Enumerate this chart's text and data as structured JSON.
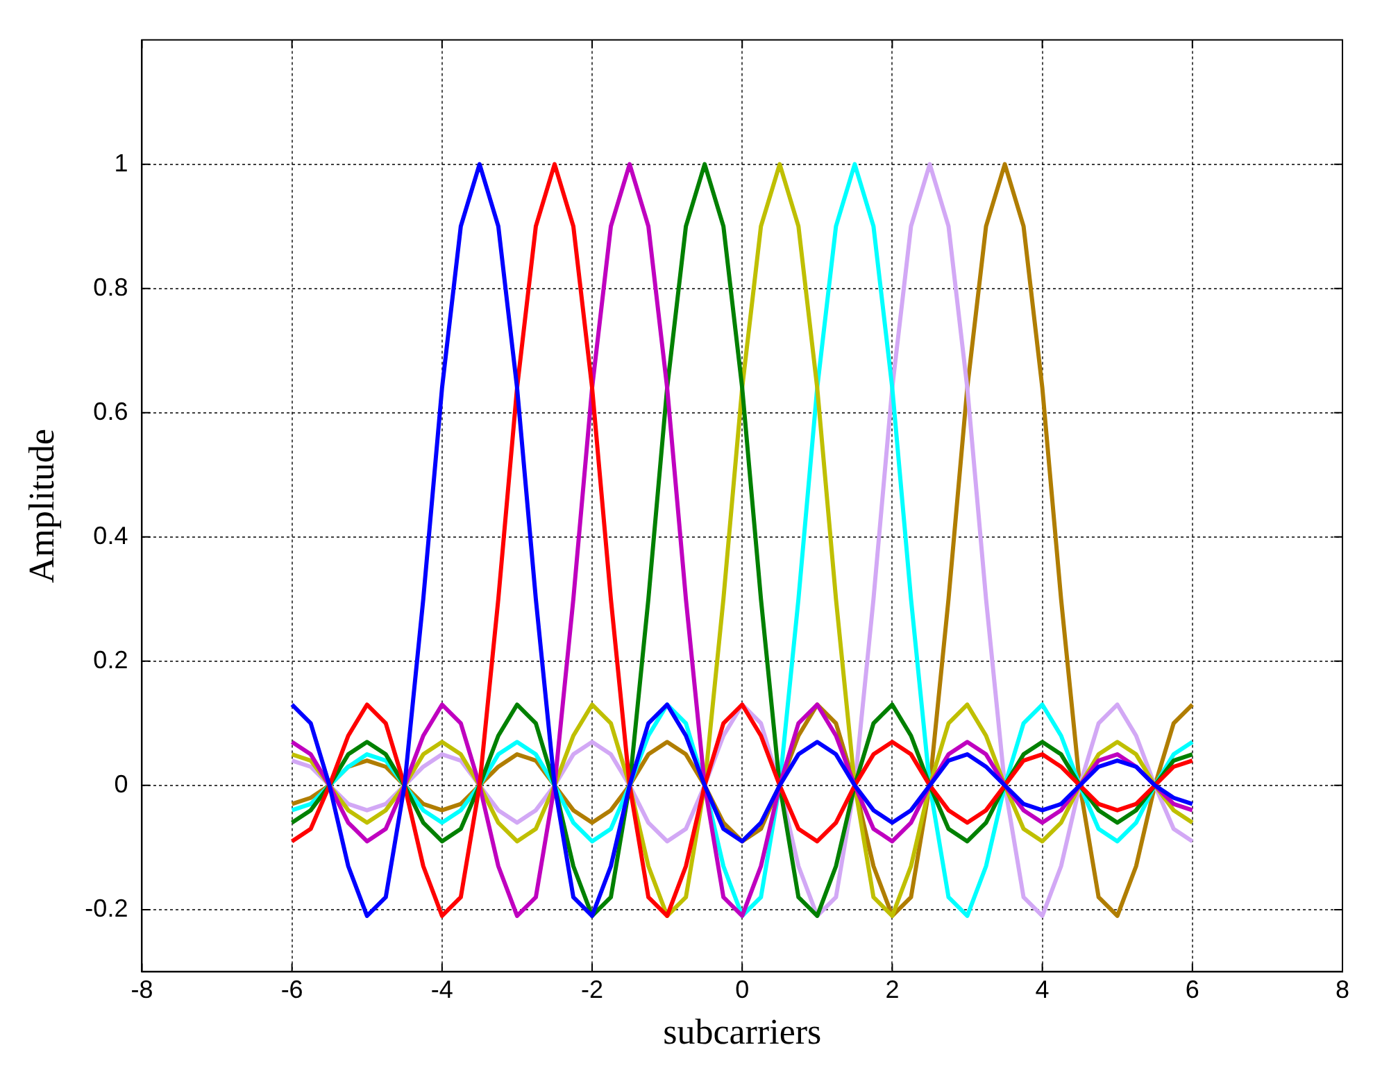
{
  "chart_data": {
    "type": "line",
    "xlabel": "subcarriers",
    "ylabel": "Amplitude",
    "x": [
      -6,
      -5.75,
      -5.5,
      -5.25,
      -5,
      -4.75,
      -4.5,
      -4.25,
      -4,
      -3.75,
      -3.5,
      -3.25,
      -3,
      -2.75,
      -2.5,
      -2.25,
      -2,
      -1.75,
      -1.5,
      -1.25,
      -1,
      -0.75,
      -0.5,
      -0.25,
      0,
      0.25,
      0.5,
      0.75,
      1,
      1.25,
      1.5,
      1.75,
      2,
      2.25,
      2.5,
      2.75,
      3,
      3.25,
      3.5,
      3.75,
      4,
      4.25,
      4.5,
      4.75,
      5,
      5.25,
      5.5,
      5.75,
      6
    ],
    "series": [
      {
        "color": "#0000ff",
        "values": [
          0.13,
          0.1,
          0,
          -0.13,
          -0.21,
          -0.18,
          0,
          0.3,
          0.64,
          0.9,
          1,
          0.9,
          0.64,
          0.3,
          0,
          -0.18,
          -0.21,
          -0.13,
          0,
          0.1,
          0.13,
          0.08,
          0,
          -0.07,
          -0.09,
          -0.06,
          0,
          0.05,
          0.07,
          0.05,
          0,
          -0.04,
          -0.06,
          -0.04,
          0,
          0.04,
          0.05,
          0.03,
          0,
          -0.03,
          -0.04,
          -0.03,
          0,
          0.03,
          0.04,
          0.03,
          0,
          -0.02,
          -0.03
        ]
      },
      {
        "color": "#ff0000",
        "values": [
          -0.09,
          -0.07,
          0,
          0.08,
          0.13,
          0.1,
          0,
          -0.13,
          -0.21,
          -0.18,
          0,
          0.3,
          0.64,
          0.9,
          1,
          0.9,
          0.64,
          0.3,
          0,
          -0.18,
          -0.21,
          -0.13,
          0,
          0.1,
          0.13,
          0.08,
          0,
          -0.07,
          -0.09,
          -0.06,
          0,
          0.05,
          0.07,
          0.05,
          0,
          -0.04,
          -0.06,
          -0.04,
          0,
          0.04,
          0.05,
          0.03,
          0,
          -0.03,
          -0.04,
          -0.03,
          0,
          0.03,
          0.04
        ]
      },
      {
        "color": "#bf00bf",
        "values": [
          0.07,
          0.05,
          0,
          -0.06,
          -0.09,
          -0.07,
          0,
          0.08,
          0.13,
          0.1,
          0,
          -0.13,
          -0.21,
          -0.18,
          0,
          0.3,
          0.64,
          0.9,
          1,
          0.9,
          0.64,
          0.3,
          0,
          -0.18,
          -0.21,
          -0.13,
          0,
          0.1,
          0.13,
          0.08,
          0,
          -0.07,
          -0.09,
          -0.06,
          0,
          0.05,
          0.07,
          0.05,
          0,
          -0.04,
          -0.06,
          -0.04,
          0,
          0.04,
          0.05,
          0.03,
          0,
          -0.03,
          -0.04
        ]
      },
      {
        "color": "#008000",
        "values": [
          -0.06,
          -0.04,
          0,
          0.05,
          0.07,
          0.05,
          0,
          -0.06,
          -0.09,
          -0.07,
          0,
          0.08,
          0.13,
          0.1,
          0,
          -0.13,
          -0.21,
          -0.18,
          0,
          0.3,
          0.64,
          0.9,
          1,
          0.9,
          0.64,
          0.3,
          0,
          -0.18,
          -0.21,
          -0.13,
          0,
          0.1,
          0.13,
          0.08,
          0,
          -0.07,
          -0.09,
          -0.06,
          0,
          0.05,
          0.07,
          0.05,
          0,
          -0.04,
          -0.06,
          -0.04,
          0,
          0.04,
          0.05
        ]
      },
      {
        "color": "#bfbf00",
        "values": [
          0.05,
          0.04,
          0,
          -0.04,
          -0.06,
          -0.04,
          0,
          0.05,
          0.07,
          0.05,
          0,
          -0.06,
          -0.09,
          -0.07,
          0,
          0.08,
          0.13,
          0.1,
          0,
          -0.13,
          -0.21,
          -0.18,
          0,
          0.3,
          0.64,
          0.9,
          1,
          0.9,
          0.64,
          0.3,
          0,
          -0.18,
          -0.21,
          -0.13,
          0,
          0.1,
          0.13,
          0.08,
          0,
          -0.07,
          -0.09,
          -0.06,
          0,
          0.05,
          0.07,
          0.05,
          0,
          -0.04,
          -0.06
        ]
      },
      {
        "color": "#00ffff",
        "values": [
          -0.04,
          -0.03,
          0,
          0.03,
          0.05,
          0.04,
          0,
          -0.04,
          -0.06,
          -0.04,
          0,
          0.05,
          0.07,
          0.05,
          0,
          -0.06,
          -0.09,
          -0.07,
          0,
          0.08,
          0.13,
          0.1,
          0,
          -0.13,
          -0.21,
          -0.18,
          0,
          0.3,
          0.64,
          0.9,
          1,
          0.9,
          0.64,
          0.3,
          0,
          -0.18,
          -0.21,
          -0.13,
          0,
          0.1,
          0.13,
          0.08,
          0,
          -0.07,
          -0.09,
          -0.06,
          0,
          0.05,
          0.07
        ]
      },
      {
        "color": "#d2a8f5",
        "values": [
          0.04,
          0.03,
          0,
          -0.03,
          -0.04,
          -0.03,
          0,
          0.03,
          0.05,
          0.04,
          0,
          -0.04,
          -0.06,
          -0.04,
          0,
          0.05,
          0.07,
          0.05,
          0,
          -0.06,
          -0.09,
          -0.07,
          0,
          0.08,
          0.13,
          0.1,
          0,
          -0.13,
          -0.21,
          -0.18,
          0,
          0.3,
          0.64,
          0.9,
          1,
          0.9,
          0.64,
          0.3,
          0,
          -0.18,
          -0.21,
          -0.13,
          0,
          0.1,
          0.13,
          0.08,
          0,
          -0.07,
          -0.09
        ]
      },
      {
        "color": "#b07d00",
        "values": [
          -0.03,
          -0.02,
          0,
          0.03,
          0.04,
          0.03,
          0,
          -0.03,
          -0.04,
          -0.03,
          0,
          0.03,
          0.05,
          0.04,
          0,
          -0.04,
          -0.06,
          -0.04,
          0,
          0.05,
          0.07,
          0.05,
          0,
          -0.06,
          -0.09,
          -0.07,
          0,
          0.08,
          0.13,
          0.1,
          0,
          -0.13,
          -0.21,
          -0.18,
          0,
          0.3,
          0.64,
          0.9,
          1,
          0.9,
          0.64,
          0.3,
          0,
          -0.18,
          -0.21,
          -0.13,
          0,
          0.1,
          0.13
        ]
      }
    ],
    "xlim": [
      -8,
      8
    ],
    "xticks": [
      -8,
      -6,
      -4,
      -2,
      0,
      2,
      4,
      6,
      8
    ],
    "ylim": [
      -0.3,
      1.2
    ],
    "yticks": [
      -0.2,
      0,
      0.2,
      0.4,
      0.6,
      0.8,
      1
    ],
    "grid": true,
    "legend": false,
    "marker": "none",
    "line_style": "solid"
  }
}
